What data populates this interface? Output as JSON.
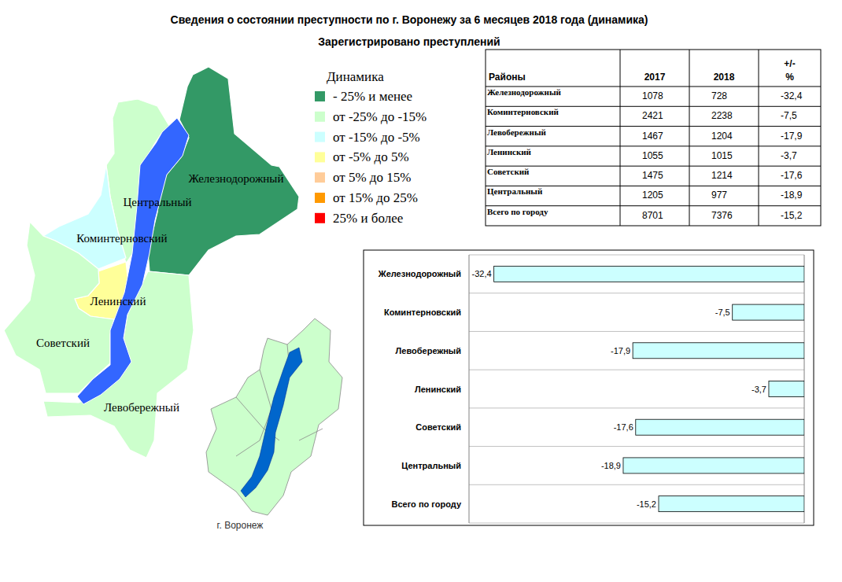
{
  "header": {
    "title": "Сведения о состоянии преступности по г. Воронежу за 6 месяцев 2018 года (динамика)",
    "subtitle": "Зарегистрировано преступлений"
  },
  "legend": {
    "title": "Динамика",
    "items": [
      {
        "label": "- 25% и менее",
        "color": "#339966"
      },
      {
        "label": "от -25% до -15%",
        "color": "#ccffcc"
      },
      {
        "label": "от -15% до -5%",
        "color": "#ccffff"
      },
      {
        "label": "от -5% до 5%",
        "color": "#ffff99"
      },
      {
        "label": "от 5% до 15%",
        "color": "#ffcc99"
      },
      {
        "label": "от 15% до 25%",
        "color": "#ff9900"
      },
      {
        "label": "25% и более",
        "color": "#ff0000"
      }
    ]
  },
  "map": {
    "districts": [
      {
        "name": "Железнодорожный",
        "color": "#339966"
      },
      {
        "name": "Центральный",
        "color": "#ccffcc"
      },
      {
        "name": "Коминтерновский",
        "color": "#ccffff"
      },
      {
        "name": "Ленинский",
        "color": "#ffff99"
      },
      {
        "name": "Советский",
        "color": "#ccffcc"
      },
      {
        "name": "Левобережный",
        "color": "#ccffcc"
      }
    ],
    "river_color": "#3366ff",
    "inset_caption": "г. Воронеж"
  },
  "table": {
    "columns": [
      "Районы",
      "2017",
      "2018",
      "+/-\n%"
    ],
    "rows": [
      [
        "Железнодорожный",
        "1078",
        "728",
        "-32,4"
      ],
      [
        "Коминтерновский",
        "2421",
        "2238",
        "-7,5"
      ],
      [
        "Левобережный",
        "1467",
        "1204",
        "-17,9"
      ],
      [
        "Ленинский",
        "1055",
        "1015",
        "-3,7"
      ],
      [
        "Советский",
        "1475",
        "1214",
        "-17,6"
      ],
      [
        "Центральный",
        "1205",
        "977",
        "-18,9"
      ],
      [
        "Всего по городу",
        "8701",
        "7376",
        "-15,2"
      ]
    ]
  },
  "chart_data": {
    "type": "bar",
    "orientation": "horizontal",
    "categories": [
      "Железнодорожный",
      "Коминтерновский",
      "Левобережный",
      "Ленинский",
      "Советский",
      "Центральный",
      "Всего по городу"
    ],
    "values": [
      -32.4,
      -7.5,
      -17.9,
      -3.7,
      -17.6,
      -18.9,
      -15.2
    ],
    "value_labels": [
      "-32,4",
      "-7,5",
      "-17,9",
      "-3,7",
      "-17,6",
      "-18,9",
      "-15,2"
    ],
    "color": "#ccffff",
    "xlim": [
      -35,
      0
    ],
    "data_labels": true,
    "tick_labels": "y",
    "grid": true
  }
}
